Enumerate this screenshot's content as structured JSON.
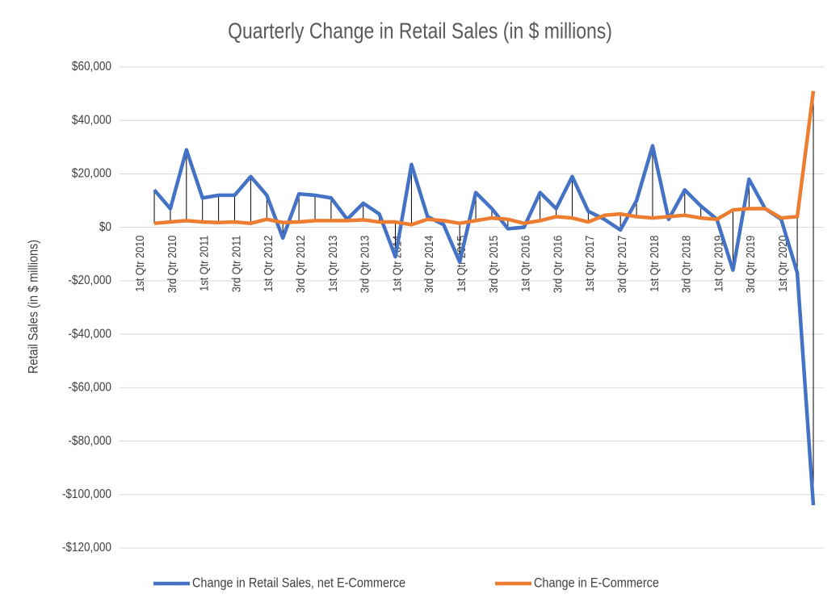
{
  "chart_data": {
    "type": "line",
    "title": "Quarterly Change in Retail Sales (in $ millions)",
    "y_label": "Retail Sales (in $ millions)",
    "categories": [
      "1st Qtr 2010",
      null,
      "3rd Qtr 2010",
      null,
      "1st Qtr 2011",
      null,
      "3rd Qtr 2011",
      null,
      "1st Qtr 2012",
      null,
      "3rd Qtr 2012",
      null,
      "1st Qtr 2013",
      null,
      "3rd Qtr 2013",
      null,
      "1st Qtr 2014",
      null,
      "3rd Qtr 2014",
      null,
      "1st Qtr 2015",
      null,
      "3rd Qtr 2015",
      null,
      "1st Qtr 2016",
      null,
      "3rd Qtr 2016",
      null,
      "1st Qtr 2017",
      null,
      "3rd Qtr 2017",
      null,
      "1st Qtr 2018",
      null,
      "3rd Qtr 2018",
      null,
      "1st Qtr 2019",
      null,
      "3rd Qtr 2019",
      null,
      "1st Qtr 2020",
      null
    ],
    "series": [
      {
        "name": "Change in Retail Sales, net E-Commerce",
        "color": "#4472c4",
        "values": [
          14000,
          7000,
          29000,
          11000,
          12000,
          12000,
          19000,
          12000,
          -4000,
          12500,
          12000,
          11000,
          3000,
          9000,
          5000,
          -11000,
          23500,
          4000,
          1000,
          -13000,
          13000,
          7000,
          -500,
          0,
          13000,
          7000,
          19000,
          6000,
          3000,
          -1000,
          10000,
          30500,
          3000,
          14000,
          8000,
          3000,
          -16000,
          18000,
          7000,
          3000,
          -17000,
          -104000
        ]
      },
      {
        "name": "Change in E-Commerce",
        "color": "#ed7d31",
        "values": [
          1500,
          2000,
          2500,
          2000,
          1800,
          2000,
          1500,
          3000,
          1800,
          2000,
          2500,
          2500,
          2500,
          2800,
          2000,
          2000,
          1000,
          3000,
          2500,
          1500,
          2500,
          3500,
          3000,
          1500,
          2500,
          4000,
          3500,
          2000,
          4500,
          5000,
          4000,
          3500,
          4000,
          4500,
          3500,
          3000,
          6500,
          7000,
          7000,
          3500,
          4000,
          51000
        ]
      }
    ],
    "drop_lines": true,
    "ylim": [
      -120000,
      60000
    ],
    "yticks": [
      {
        "value": -120000,
        "label": "-$120,000"
      },
      {
        "value": -100000,
        "label": "-$100,000"
      },
      {
        "value": -80000,
        "label": "-$80,000"
      },
      {
        "value": -60000,
        "label": "-$60,000"
      },
      {
        "value": -40000,
        "label": "-$40,000"
      },
      {
        "value": -20000,
        "label": "-$20,000"
      },
      {
        "value": 0,
        "label": "$0"
      },
      {
        "value": 20000,
        "label": "$20,000"
      },
      {
        "value": 40000,
        "label": "$40,000"
      },
      {
        "value": 60000,
        "label": "$60,000"
      }
    ],
    "grid": true,
    "legend": "bottom"
  }
}
